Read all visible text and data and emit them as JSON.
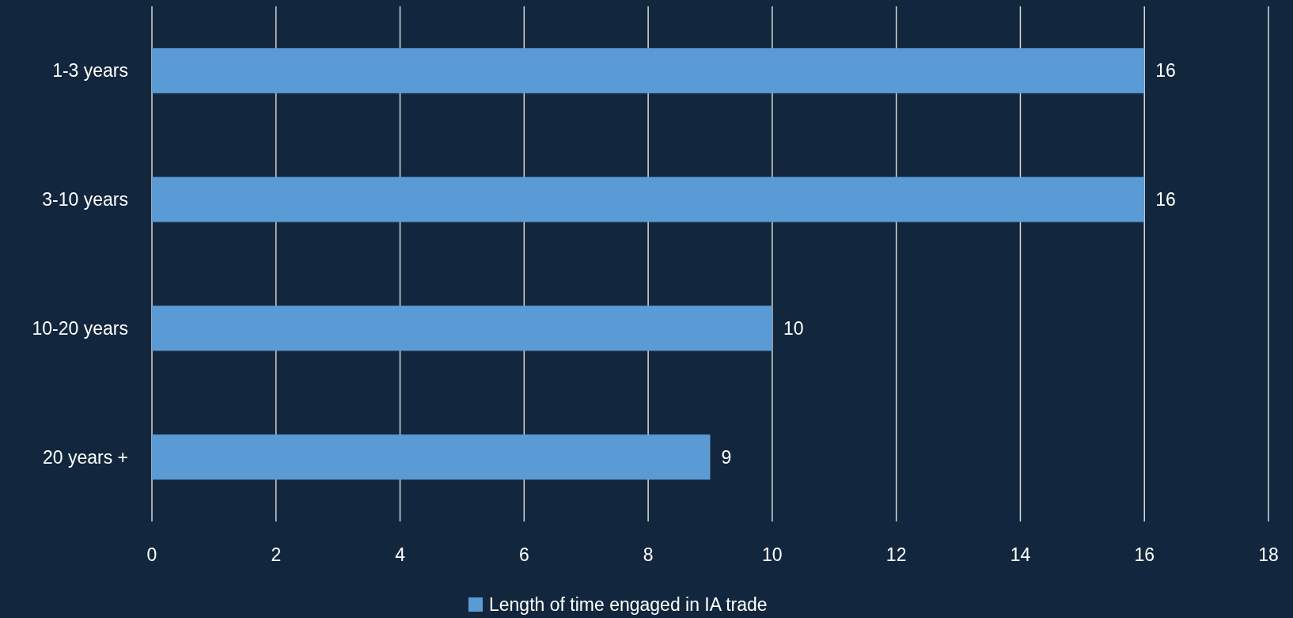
{
  "chart_data": {
    "type": "bar",
    "orientation": "horizontal",
    "categories": [
      "1-3 years",
      "3-10 years",
      "10-20 years",
      "20 years +"
    ],
    "series": [
      {
        "name": "Length of time engaged in IA trade",
        "color": "#5b9bd5",
        "values": [
          16,
          16,
          10,
          9
        ]
      }
    ],
    "xlim": [
      0,
      18
    ],
    "xticks": [
      0,
      2,
      4,
      6,
      8,
      10,
      12,
      14,
      16,
      18
    ],
    "grid": "x",
    "legend": "bottom",
    "data_labels": true
  }
}
